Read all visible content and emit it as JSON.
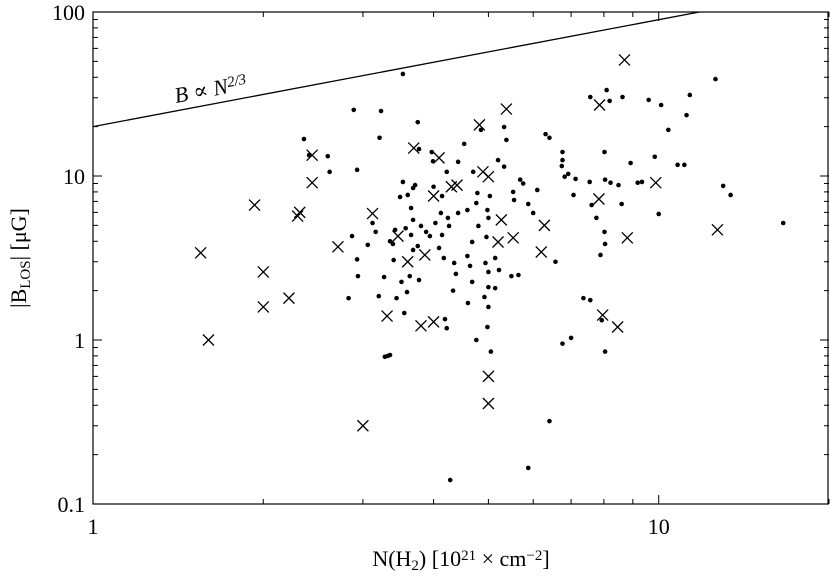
{
  "chart_data": {
    "type": "scatter",
    "xlabel": [
      {
        "text": "N(H"
      },
      {
        "text": "2",
        "shift": "sub"
      },
      {
        "text": ") [10"
      },
      {
        "text": "21",
        "shift": "sup"
      },
      {
        "text": " × cm"
      },
      {
        "text": "−2",
        "shift": "sup"
      },
      {
        "text": "]"
      }
    ],
    "ylabel": [
      {
        "text": "|B"
      },
      {
        "text": "LOS",
        "shift": "sub"
      },
      {
        "text": "| [μG]"
      }
    ],
    "xscale": "log",
    "yscale": "log",
    "xlim": [
      1,
      20
    ],
    "ylim": [
      0.1,
      100
    ],
    "xticks": [
      1,
      10
    ],
    "yticks": [
      0.1,
      1,
      10,
      100
    ],
    "xminorticks": [
      2,
      3,
      4,
      5,
      6,
      7,
      8,
      9,
      20
    ],
    "yminorticks": [
      0.2,
      0.3,
      0.4,
      0.5,
      0.6,
      0.7,
      0.8,
      0.9,
      2,
      3,
      4,
      5,
      6,
      7,
      8,
      9,
      20,
      30,
      40,
      50,
      60,
      70,
      80,
      90
    ],
    "reference_line": {
      "x": [
        1,
        11.8
      ],
      "values": [
        20,
        100
      ],
      "color": "#000000",
      "annotation": [
        {
          "text": "B ∝ N"
        },
        {
          "text": "2/3",
          "shift": "sup"
        }
      ]
    },
    "series": [
      {
        "marker": "dot",
        "color": "#000000",
        "x": [
          3.53,
          2.89,
          3.23,
          3.75,
          2.36,
          3.21,
          2.41,
          2.6,
          2.93,
          2.62,
          3.77,
          3.97,
          3.99,
          4.22,
          4.53,
          4.42,
          4.7,
          4.85,
          5.33,
          5.38,
          5.2,
          5.33,
          5.69,
          5.76,
          5.53,
          5.55,
          6.31,
          6.41,
          6.76,
          6.76,
          6.74,
          6.92,
          7.07,
          6.1,
          5.88,
          6.0,
          7.57,
          8.09,
          8.19,
          8.63,
          9.6,
          10.1,
          10.4,
          11.35,
          12.6,
          11.2,
          7.55,
          8.02,
          8.04,
          8.22,
          8.49,
          8.92,
          9.18,
          9.34,
          9.84,
          10.8,
          11.1,
          13.0,
          13.4,
          10.0,
          7.61,
          7.76,
          8.02,
          8.04,
          7.89,
          7.57,
          8.04,
          7.93,
          7.0,
          6.76,
          6.41,
          5.88,
          5.22,
          5.49,
          5.65,
          5.14,
          4.96,
          5.0,
          5.03,
          4.98,
          4.76,
          4.78,
          4.59,
          4.42,
          4.24,
          4.12,
          4.26,
          4.14,
          4.09,
          4.17,
          4.35,
          4.59,
          4.64,
          4.68,
          4.8,
          4.94,
          5.0,
          5.14,
          5.0,
          4.92,
          5.0,
          4.98,
          5.05,
          4.76,
          4.6,
          4.68,
          4.22,
          4.19,
          4.38,
          4.33,
          3.77,
          3.75,
          3.8,
          3.88,
          3.94,
          4.03,
          3.65,
          3.68,
          3.65,
          3.68,
          3.63,
          3.59,
          3.55,
          3.44,
          3.51,
          3.4,
          3.39,
          3.35,
          3.27,
          3.35,
          3.32,
          3.28,
          3.6,
          3.68,
          3.53,
          3.49,
          3.42,
          3.71,
          4.14,
          4.0,
          4.28,
          7.36,
          16.6,
          6.57,
          7.13,
          6.82,
          8.6,
          3.12,
          3.06,
          2.87,
          3.16,
          2.93,
          2.83,
          3.2,
          2.94,
          3.57
        ],
        "values": [
          41.9,
          25.3,
          24.9,
          21.3,
          16.8,
          17.1,
          13.4,
          13.2,
          10.9,
          10.6,
          14.6,
          14.0,
          12.3,
          10.6,
          15.7,
          12.2,
          10.6,
          19.1,
          19.9,
          16.6,
          12.5,
          11.4,
          9.5,
          9.0,
          8.0,
          7.14,
          18.0,
          17.1,
          14.0,
          12.5,
          11.5,
          10.3,
          7.66,
          8.22,
          6.75,
          5.95,
          30.3,
          33.4,
          28.7,
          30.3,
          29.1,
          27.1,
          19.1,
          31.2,
          39.0,
          23.5,
          9.2,
          14.0,
          9.5,
          9.1,
          8.8,
          12.0,
          9.1,
          9.2,
          13.1,
          11.7,
          11.7,
          8.7,
          7.66,
          5.87,
          6.65,
          5.55,
          4.56,
          3.85,
          3.3,
          1.75,
          0.85,
          1.32,
          1.03,
          0.95,
          0.32,
          0.166,
          2.67,
          2.45,
          2.49,
          3.16,
          4.25,
          5.55,
          7.55,
          6.2,
          6.84,
          7.87,
          6.2,
          5.95,
          5.55,
          5.95,
          4.96,
          4.37,
          3.64,
          3.16,
          2.95,
          3.25,
          2.83,
          3.96,
          4.96,
          2.95,
          2.6,
          2.07,
          2.1,
          1.83,
          1.59,
          1.2,
          0.85,
          1.0,
          1.68,
          2.26,
          1.18,
          1.34,
          2.53,
          2.0,
          2.32,
          3.74,
          4.96,
          4.56,
          4.3,
          5.17,
          6.38,
          5.4,
          4.37,
          3.54,
          2.45,
          1.96,
          1.46,
          1.8,
          2.26,
          3.07,
          3.85,
          4.0,
          2.42,
          0.81,
          0.8,
          0.79,
          7.66,
          8.45,
          9.2,
          7.45,
          4.69,
          8.8,
          7.55,
          8.6,
          0.14,
          1.8,
          5.17,
          3.0,
          9.6,
          9.9,
          6.75,
          5.17,
          3.8,
          4.3,
          4.56,
          3.1,
          1.8,
          1.85,
          2.45,
          4.8
        ]
      },
      {
        "marker": "cross",
        "color": "#000000",
        "x": [
          1.55,
          1.6,
          1.93,
          2.0,
          2.0,
          2.22,
          2.3,
          2.32,
          2.44,
          2.44,
          2.71,
          3.0,
          3.12,
          3.31,
          3.46,
          3.6,
          3.69,
          3.8,
          3.86,
          4.0,
          4.0,
          4.09,
          4.3,
          4.4,
          4.82,
          4.89,
          5.0,
          5.0,
          5.0,
          5.2,
          5.27,
          5.38,
          5.53,
          6.2,
          6.28,
          7.86,
          7.84,
          7.96,
          8.46,
          8.7,
          8.8,
          9.88,
          12.7
        ],
        "values": [
          3.4,
          1.0,
          6.65,
          2.6,
          1.59,
          1.8,
          5.7,
          6.0,
          9.1,
          13.4,
          3.7,
          0.3,
          5.9,
          1.4,
          4.3,
          3.0,
          14.8,
          1.22,
          3.3,
          1.29,
          7.55,
          12.9,
          8.6,
          8.8,
          20.5,
          10.6,
          9.9,
          0.6,
          0.41,
          3.96,
          5.4,
          25.6,
          4.2,
          3.44,
          5.0,
          27.1,
          7.24,
          1.42,
          1.2,
          51,
          4.2,
          9.1,
          4.7
        ]
      }
    ]
  }
}
